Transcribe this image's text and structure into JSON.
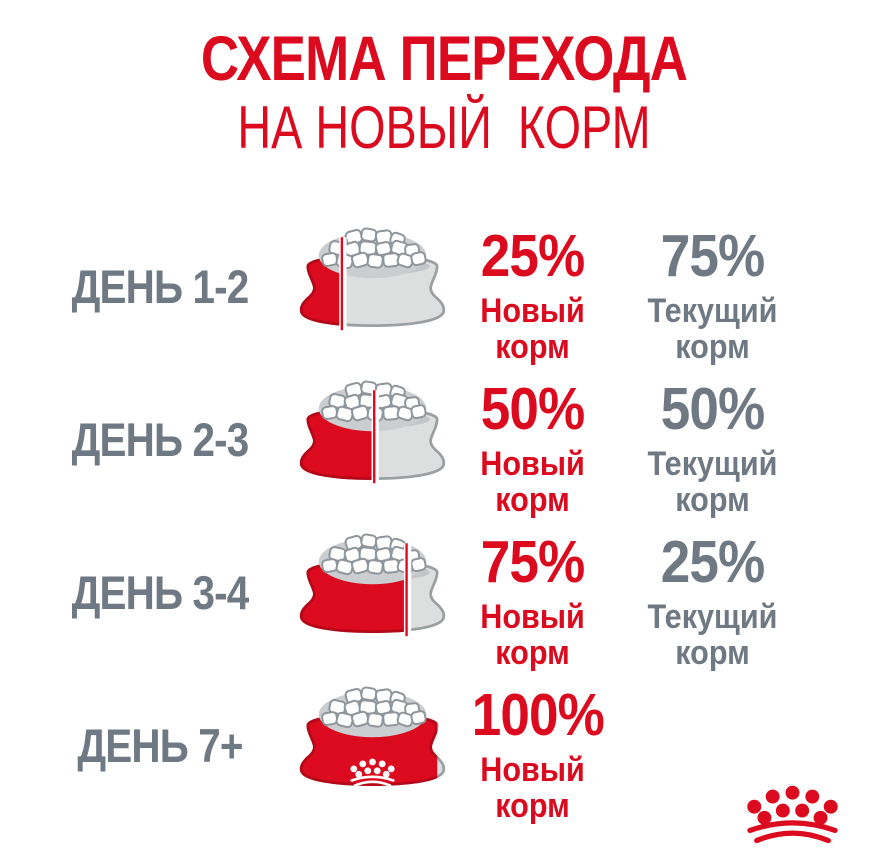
{
  "title": {
    "line1": "СХЕМА ПЕРЕХОДА",
    "line2": "НА НОВЫЙ  КОРМ"
  },
  "colors": {
    "brand_red": "#DC0A1E",
    "text_gray": "#6E7983",
    "bowl_gray": "#DDDEDE"
  },
  "rows": [
    {
      "day": "ДЕНЬ 1-2",
      "bowl": {
        "fill_percent": 25,
        "divider": true,
        "crown": false
      },
      "new_food": {
        "percent": "25%",
        "label_line1": "Новый",
        "label_line2": "корм"
      },
      "current_food": {
        "percent": "75%",
        "label_line1": "Текущий",
        "label_line2": "корм"
      }
    },
    {
      "day": "ДЕНЬ 2-3",
      "bowl": {
        "fill_percent": 50,
        "divider": true,
        "crown": false
      },
      "new_food": {
        "percent": "50%",
        "label_line1": "Новый",
        "label_line2": "корм"
      },
      "current_food": {
        "percent": "50%",
        "label_line1": "Текущий",
        "label_line2": "корм"
      }
    },
    {
      "day": "ДЕНЬ 3-4",
      "bowl": {
        "fill_percent": 75,
        "divider": true,
        "crown": false
      },
      "new_food": {
        "percent": "75%",
        "label_line1": "Новый",
        "label_line2": "корм"
      },
      "current_food": {
        "percent": "25%",
        "label_line1": "Текущий",
        "label_line2": "корм"
      }
    },
    {
      "day": "ДЕНЬ 7+",
      "bowl": {
        "fill_percent": 100,
        "divider": false,
        "crown": true
      },
      "new_food": {
        "percent": "100%",
        "label_line1": "Новый",
        "label_line2": "корм"
      }
    }
  ],
  "logo": {
    "name": "royal-canin-crown"
  }
}
